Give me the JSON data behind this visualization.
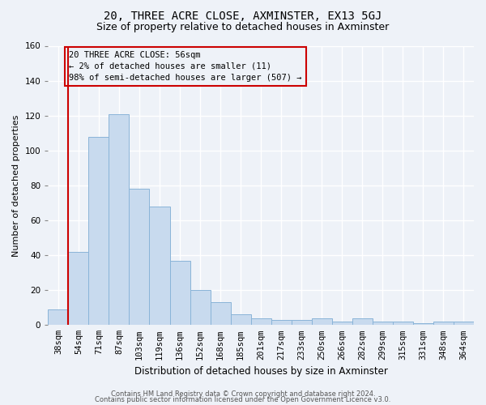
{
  "title": "20, THREE ACRE CLOSE, AXMINSTER, EX13 5GJ",
  "subtitle": "Size of property relative to detached houses in Axminster",
  "xlabel": "Distribution of detached houses by size in Axminster",
  "ylabel": "Number of detached properties",
  "bar_color": "#c8daee",
  "bar_edge_color": "#8ab4d8",
  "categories": [
    "38sqm",
    "54sqm",
    "71sqm",
    "87sqm",
    "103sqm",
    "119sqm",
    "136sqm",
    "152sqm",
    "168sqm",
    "185sqm",
    "201sqm",
    "217sqm",
    "233sqm",
    "250sqm",
    "266sqm",
    "282sqm",
    "299sqm",
    "315sqm",
    "331sqm",
    "348sqm",
    "364sqm"
  ],
  "values": [
    9,
    42,
    108,
    121,
    78,
    68,
    37,
    20,
    13,
    6,
    4,
    3,
    3,
    4,
    2,
    4,
    2,
    2,
    1,
    2,
    2
  ],
  "ylim": [
    0,
    160
  ],
  "yticks": [
    0,
    20,
    40,
    60,
    80,
    100,
    120,
    140,
    160
  ],
  "vline_color": "#cc0000",
  "box_edge_color": "#cc0000",
  "annotation_line1": "20 THREE ACRE CLOSE: 56sqm",
  "annotation_line2": "← 2% of detached houses are smaller (11)",
  "annotation_line3": "98% of semi-detached houses are larger (507) →",
  "footer1": "Contains HM Land Registry data © Crown copyright and database right 2024.",
  "footer2": "Contains public sector information licensed under the Open Government Licence v3.0.",
  "background_color": "#eef2f8",
  "grid_color": "#ffffff",
  "title_fontsize": 10,
  "subtitle_fontsize": 9,
  "ylabel_fontsize": 8,
  "xlabel_fontsize": 8.5,
  "tick_fontsize": 7.5,
  "annot_fontsize": 7.5,
  "footer_fontsize": 6
}
